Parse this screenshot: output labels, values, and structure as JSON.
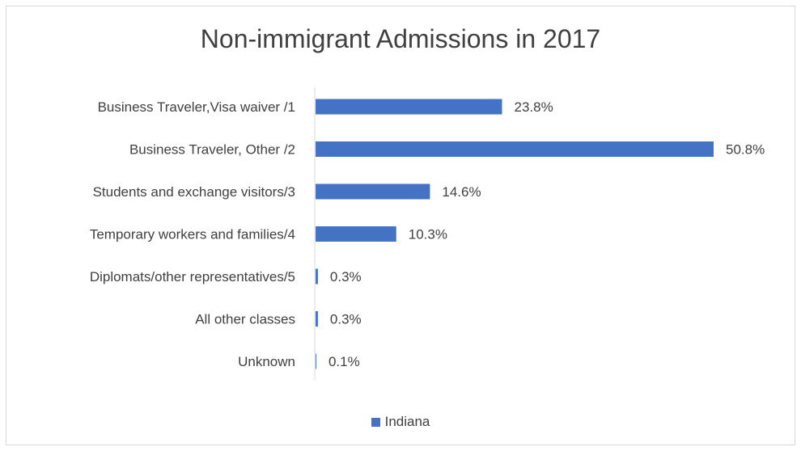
{
  "colors": {
    "bar": "#4472c4",
    "text": "#404040",
    "axis": "#d9d9d9"
  },
  "chart_data": {
    "type": "bar",
    "orientation": "horizontal",
    "title": "Non-immigrant Admissions in 2017",
    "categories": [
      "Business Traveler,Visa waiver /1",
      "Business Traveler, Other /2",
      "Students and exchange visitors/3",
      "Temporary workers and families/4",
      "Diplomats/other representatives/5",
      "All other classes",
      "Unknown"
    ],
    "series": [
      {
        "name": "Indiana",
        "values": [
          23.8,
          50.8,
          14.6,
          10.3,
          0.3,
          0.3,
          0.1
        ]
      }
    ],
    "data_labels": [
      "23.8%",
      "50.8%",
      "14.6%",
      "10.3%",
      "0.3%",
      "0.3%",
      "0.1%"
    ],
    "xlim": [
      0,
      50.8
    ],
    "grid": false,
    "legend_position": "bottom"
  }
}
